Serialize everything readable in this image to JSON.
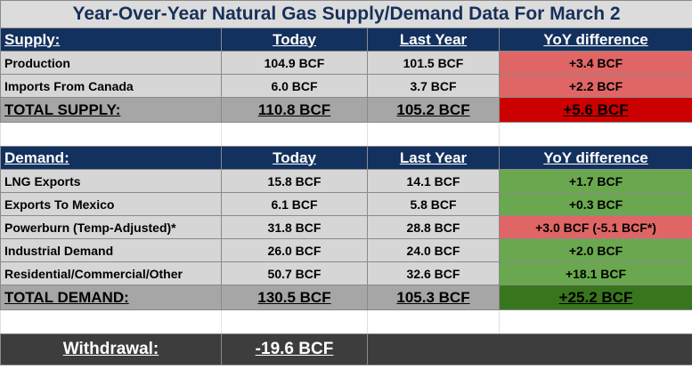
{
  "title": "Year-Over-Year Natural Gas Supply/Demand Data For March 2",
  "supply": {
    "headers": {
      "label": "Supply:",
      "today": "Today",
      "last_year": "Last Year",
      "diff": "YoY difference"
    },
    "rows": [
      {
        "label": "Production",
        "today": "104.9 BCF",
        "last_year": "101.5 BCF",
        "diff": "+3.4 BCF",
        "status_color": "#e06666"
      },
      {
        "label": "Imports From Canada",
        "today": "6.0 BCF",
        "last_year": "3.7 BCF",
        "diff": "+2.2 BCF",
        "status_color": "#e06666"
      }
    ],
    "total": {
      "label": "TOTAL SUPPLY:",
      "today": "110.8 BCF",
      "last_year": "105.2 BCF",
      "diff": "+5.6 BCF",
      "status_color": "#cc0000"
    }
  },
  "demand": {
    "headers": {
      "label": "Demand:",
      "today": "Today",
      "last_year": "Last Year",
      "diff": "YoY difference"
    },
    "rows": [
      {
        "label": "LNG Exports",
        "today": "15.8 BCF",
        "last_year": "14.1 BCF",
        "diff": "+1.7 BCF",
        "status_color": "#6aa84f"
      },
      {
        "label": "Exports To Mexico",
        "today": "6.1 BCF",
        "last_year": "5.8 BCF",
        "diff": "+0.3 BCF",
        "status_color": "#6aa84f"
      },
      {
        "label": "Powerburn (Temp-Adjusted)*",
        "today": "31.8 BCF",
        "last_year": "28.8 BCF",
        "diff": "+3.0 BCF (-5.1 BCF*)",
        "status_color": "#e06666"
      },
      {
        "label": "Industrial Demand",
        "today": "26.0 BCF",
        "last_year": "24.0 BCF",
        "diff": "+2.0 BCF",
        "status_color": "#6aa84f"
      },
      {
        "label": "Residential/Commercial/Other",
        "today": "50.7 BCF",
        "last_year": "32.6 BCF",
        "diff": "+18.1 BCF",
        "status_color": "#6aa84f"
      }
    ],
    "total": {
      "label": "TOTAL DEMAND:",
      "today": "130.5 BCF",
      "last_year": "105.3 BCF",
      "diff": "+25.2 BCF",
      "status_color": "#38761d"
    }
  },
  "withdrawal": {
    "label": "Withdrawal:",
    "value": "-19.6 BCF"
  },
  "colors": {
    "header_bg": "#13315e",
    "row_bg": "#d6d6d6",
    "total_bg": "#a6a6a6",
    "withdraw_bg": "#3d3d3d"
  }
}
